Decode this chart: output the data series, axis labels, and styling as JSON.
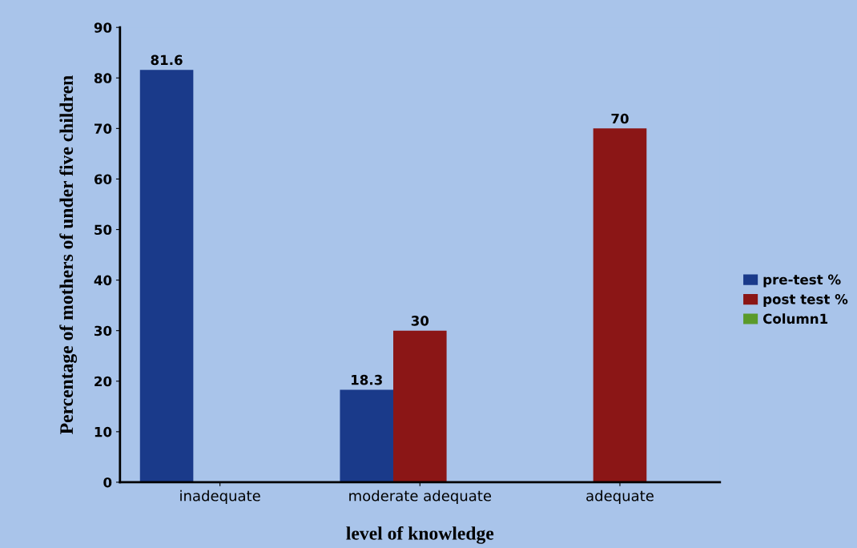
{
  "chart_data": {
    "type": "bar",
    "xlabel": "level of knowledge",
    "ylabel": "Percentage of mothers of under five children",
    "categories": [
      "inadequate",
      "moderate adequate",
      "adequate"
    ],
    "series": [
      {
        "name": "pre-test %",
        "color": "#1a3a8a",
        "values": [
          81.6,
          18.3,
          null
        ]
      },
      {
        "name": "post test %",
        "color": "#8b1616",
        "values": [
          null,
          30,
          70
        ]
      },
      {
        "name": "Column1",
        "color": "#5a9a2a",
        "values": [
          null,
          null,
          null
        ]
      }
    ],
    "ylim": [
      0,
      90
    ],
    "yticks": [
      0,
      10,
      20,
      30,
      40,
      50,
      60,
      70,
      80,
      90
    ],
    "grid": false,
    "legend": "right",
    "data_labels": true
  }
}
